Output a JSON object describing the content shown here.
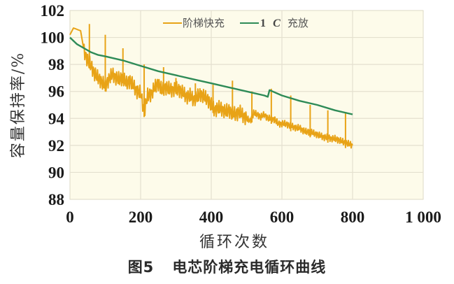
{
  "chart_data": {
    "type": "line",
    "title": "",
    "xlabel": "循环次数",
    "ylabel": "容量保持率/%",
    "xlim": [
      0,
      1000
    ],
    "ylim": [
      88,
      102
    ],
    "x_ticks": [
      "0",
      "200",
      "400",
      "600",
      "800",
      "1 000"
    ],
    "y_ticks": [
      "88",
      "90",
      "92",
      "94",
      "96",
      "98",
      "100",
      "102"
    ],
    "grid": true,
    "legend_position": "top-center-inside",
    "plot_background": "#fdfbea",
    "grid_color": "#e4e0cf",
    "series": [
      {
        "name": "阶梯快充",
        "color": "#e8a317",
        "x": [
          0,
          10,
          20,
          30,
          40,
          50,
          60,
          70,
          80,
          90,
          100,
          110,
          120,
          130,
          140,
          150,
          160,
          170,
          180,
          190,
          200,
          210,
          220,
          230,
          240,
          250,
          260,
          270,
          280,
          290,
          300,
          310,
          320,
          330,
          340,
          350,
          360,
          370,
          380,
          390,
          400,
          410,
          420,
          430,
          440,
          450,
          460,
          470,
          480,
          490,
          500,
          510,
          520,
          530,
          540,
          550,
          560,
          570,
          580,
          590,
          600,
          610,
          620,
          630,
          640,
          650,
          660,
          670,
          680,
          690,
          700,
          710,
          720,
          730,
          740,
          750,
          760,
          770,
          780,
          790,
          800
        ],
        "values": [
          100.2,
          100.7,
          100.6,
          100.5,
          99.0,
          98.3,
          97.9,
          97.3,
          97.0,
          96.7,
          96.4,
          96.9,
          97.3,
          97.0,
          96.9,
          97.0,
          96.6,
          96.8,
          96.4,
          96.0,
          95.9,
          94.5,
          95.7,
          95.8,
          96.3,
          96.6,
          96.1,
          96.3,
          96.2,
          96.1,
          96.2,
          96.1,
          95.9,
          95.6,
          95.7,
          95.4,
          95.6,
          95.8,
          95.6,
          95.4,
          95.0,
          94.6,
          94.8,
          94.7,
          94.5,
          94.6,
          94.4,
          94.3,
          94.5,
          94.2,
          94.0,
          93.8,
          94.4,
          94.3,
          94.1,
          94.3,
          94.0,
          94.0,
          93.9,
          93.6,
          93.6,
          93.6,
          93.5,
          93.4,
          93.3,
          93.3,
          93.1,
          93.0,
          93.0,
          92.9,
          92.8,
          92.7,
          92.6,
          92.6,
          92.5,
          92.5,
          92.4,
          92.3,
          92.2,
          92.1,
          92.0
        ],
        "spikes": [
          {
            "x": 55,
            "peak": 101.0
          },
          {
            "x": 100,
            "peak": 100.2
          },
          {
            "x": 150,
            "peak": 99.2
          },
          {
            "x": 210,
            "peak": 98.0
          },
          {
            "x": 265,
            "peak": 97.8
          },
          {
            "x": 300,
            "peak": 97.0
          },
          {
            "x": 355,
            "peak": 96.6
          },
          {
            "x": 405,
            "peak": 96.5
          },
          {
            "x": 460,
            "peak": 96.8
          },
          {
            "x": 515,
            "peak": 96.0
          },
          {
            "x": 570,
            "peak": 96.2
          },
          {
            "x": 625,
            "peak": 95.7
          },
          {
            "x": 680,
            "peak": 95.0
          },
          {
            "x": 730,
            "peak": 94.6
          },
          {
            "x": 780,
            "peak": 94.4
          }
        ]
      },
      {
        "name": "1 C充放",
        "color": "#2e8b57",
        "x": [
          0,
          20,
          40,
          60,
          80,
          100,
          150,
          200,
          250,
          300,
          350,
          400,
          450,
          500,
          550,
          560,
          565,
          600,
          650,
          700,
          750,
          800
        ],
        "values": [
          100.0,
          99.5,
          99.2,
          98.9,
          98.7,
          98.6,
          98.3,
          97.9,
          97.5,
          97.2,
          96.9,
          96.6,
          96.3,
          96.0,
          95.7,
          95.6,
          96.1,
          95.7,
          95.3,
          95.0,
          94.6,
          94.3
        ]
      }
    ]
  },
  "legend": {
    "items": [
      {
        "label": "阶梯快充",
        "color": "#e8a317"
      },
      {
        "label_bold": "1",
        "label_italic": "C",
        "label_rest": "充放",
        "color": "#2e8b57"
      }
    ]
  },
  "axes": {
    "xlabel": "循环次数",
    "ylabel": "容量保持率/%"
  },
  "caption": {
    "figure_number": "图5",
    "text": "电芯阶梯充电循环曲线"
  }
}
